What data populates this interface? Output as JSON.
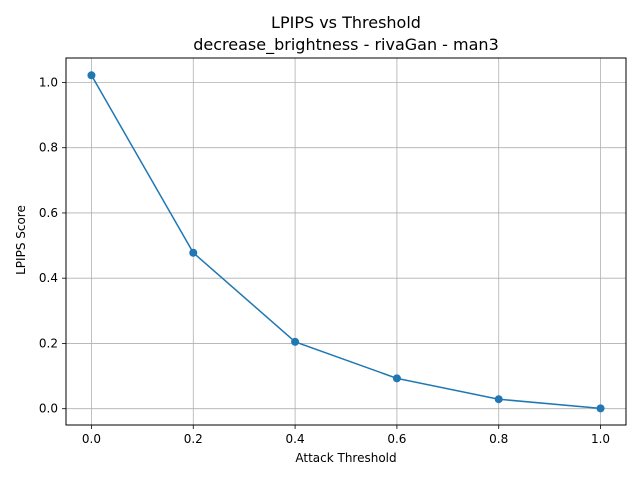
{
  "chart_data": {
    "type": "line",
    "title": "LPIPS vs Threshold",
    "subtitle": "decrease_brightness - rivaGan - man3",
    "xlabel": "Attack Threshold",
    "ylabel": "LPIPS Score",
    "x": [
      0.0,
      0.2,
      0.4,
      0.6,
      0.8,
      1.0
    ],
    "series": [
      {
        "name": "LPIPS Score",
        "values": [
          1.022,
          0.478,
          0.205,
          0.093,
          0.029,
          0.001
        ]
      }
    ],
    "xlim": [
      -0.05,
      1.05
    ],
    "ylim": [
      -0.05,
      1.075
    ],
    "xticks": [
      0.0,
      0.2,
      0.4,
      0.6,
      0.8,
      1.0
    ],
    "xtick_labels": [
      "0.0",
      "0.2",
      "0.4",
      "0.6",
      "0.8",
      "1.0"
    ],
    "yticks": [
      0.0,
      0.2,
      0.4,
      0.6,
      0.8,
      1.0
    ],
    "ytick_labels": [
      "0.0",
      "0.2",
      "0.4",
      "0.6",
      "0.8",
      "1.0"
    ],
    "grid": true,
    "line_color": "#1f77b4",
    "marker": "circle"
  }
}
